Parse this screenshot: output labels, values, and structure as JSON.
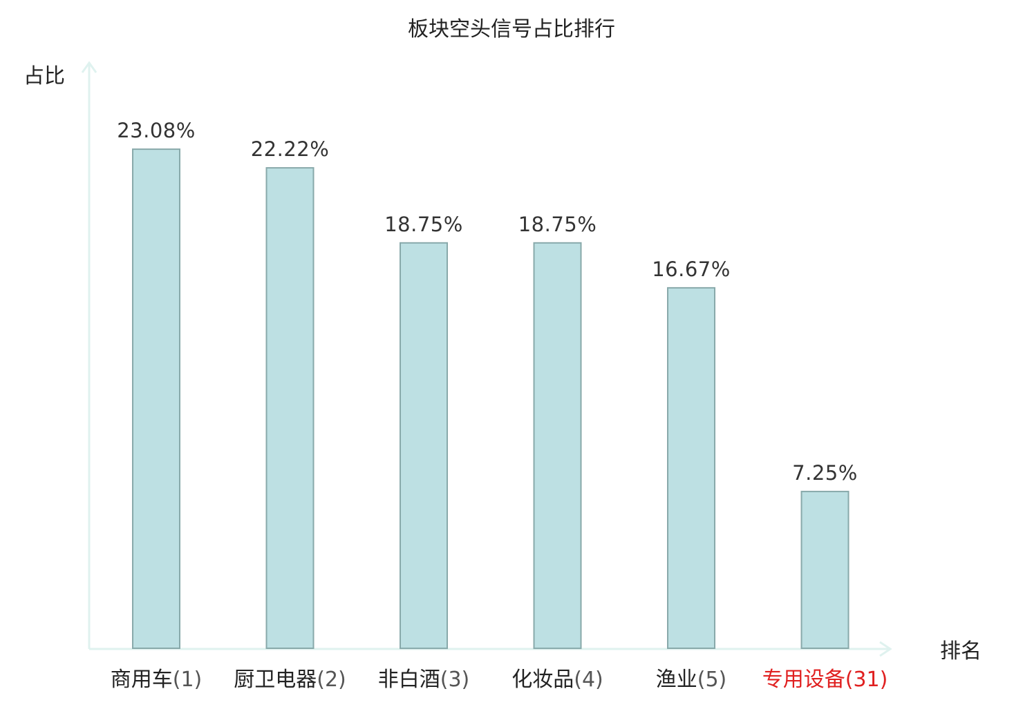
{
  "chart_data": {
    "type": "bar",
    "title": "板块空头信号占比排行",
    "ylabel": "占比",
    "xlabel": "排名",
    "ylim": [
      0,
      25
    ],
    "grid": false,
    "legend": "none",
    "categories": [
      "商用车",
      "厨卫电器",
      "非白酒",
      "化妆品",
      "渔业",
      "专用设备"
    ],
    "ranks": [
      "(1)",
      "(2)",
      "(3)",
      "(4)",
      "(5)",
      "(31)"
    ],
    "values": [
      23.08,
      22.22,
      18.75,
      18.75,
      16.67,
      7.25
    ],
    "value_labels": [
      "23.08%",
      "22.22%",
      "18.75%",
      "18.75%",
      "16.67%",
      "7.25%"
    ],
    "highlight_category": "专用设备"
  },
  "colors": {
    "bar_fill": "#bde0e3",
    "bar_stroke": "#88a9aa",
    "axis": "#dff2ef",
    "highlight": "#e02020",
    "text": "#222222"
  }
}
